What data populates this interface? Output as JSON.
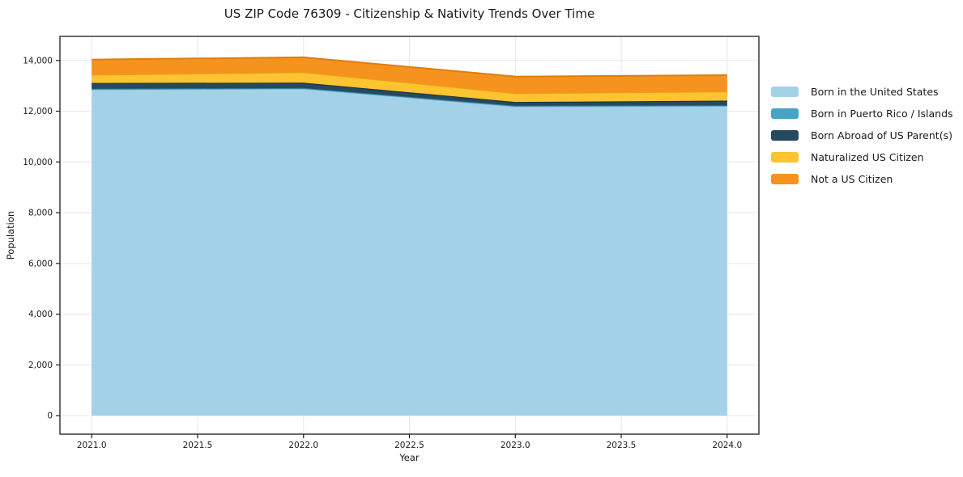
{
  "figure": {
    "title": "US ZIP Code 76309 - Citizenship & Nativity Trends Over Time",
    "xlabel": "Year",
    "ylabel": "Population"
  },
  "chart_data": {
    "type": "area",
    "stacked": true,
    "title": "US ZIP Code 76309 - Citizenship & Nativity Trends Over Time",
    "xlabel": "Year",
    "ylabel": "Population",
    "x": [
      2021,
      2022,
      2023,
      2024
    ],
    "series": [
      {
        "name": "Born in the United States",
        "color": "#a3d2e8",
        "edge": "#74b6d4",
        "values": [
          12860,
          12890,
          12190,
          12210
        ]
      },
      {
        "name": "Born in Puerto Rico / Islands",
        "color": "#46a5c5",
        "edge": "#35809c",
        "values": [
          25,
          25,
          25,
          25
        ]
      },
      {
        "name": "Born Abroad of US Parent(s)",
        "color": "#25495f",
        "edge": "#16303f",
        "values": [
          230,
          210,
          150,
          180
        ]
      },
      {
        "name": "Naturalized US Citizen",
        "color": "#fdc330",
        "edge": "#e2a912",
        "values": [
          320,
          410,
          340,
          360
        ]
      },
      {
        "name": "Not a US Citizen",
        "color": "#f6921e",
        "edge": "#dd7e0e",
        "values": [
          600,
          590,
          660,
          650
        ]
      }
    ],
    "xlim": [
      2020.85,
      2024.15
    ],
    "ylim": [
      -730,
      14950
    ],
    "x_ticks": [
      2021.0,
      2021.5,
      2022.0,
      2022.5,
      2023.0,
      2023.5,
      2024.0
    ],
    "x_tick_labels": [
      "2021.0",
      "2021.5",
      "2022.0",
      "2022.5",
      "2023.0",
      "2023.5",
      "2024.0"
    ],
    "y_ticks": [
      0,
      2000,
      4000,
      6000,
      8000,
      10000,
      12000,
      14000
    ],
    "y_tick_labels": [
      "0",
      "2,000",
      "4,000",
      "6,000",
      "8,000",
      "10,000",
      "12,000",
      "14,000"
    ],
    "grid": true,
    "grid_color": "#e7e7e7",
    "axis_color": "#1a1a1a",
    "tick_label_color": "#1a1a1a",
    "legend_position": "right"
  }
}
